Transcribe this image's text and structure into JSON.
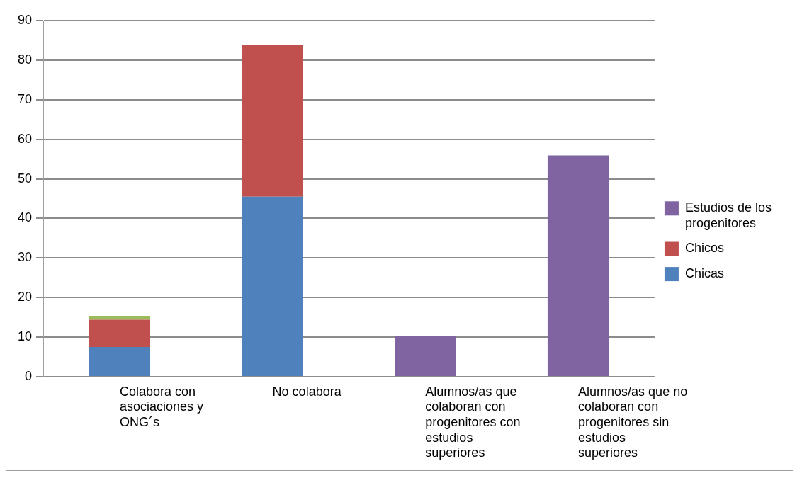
{
  "chart_data": {
    "type": "bar",
    "stacked": true,
    "categories": [
      "Colabora con asociaciones y ONG´s",
      "No colabora",
      "Alumnos/as que colaboran con progenitores con estudios superiores",
      "Alumnos/as que no colaboran con progenitores sin estudios superiores"
    ],
    "series": [
      {
        "name": "Chicas",
        "color": "#4f81bd",
        "values": [
          7.5,
          45.5,
          null,
          null
        ]
      },
      {
        "name": "Chicos",
        "color": "#c0504d",
        "values": [
          6.9,
          38.3,
          null,
          null
        ]
      },
      {
        "color": "#9bbb59",
        "values": [
          1.0,
          null,
          null,
          null
        ]
      },
      {
        "name": "Estudios de los progenitores",
        "color": "#8064a2",
        "values": [
          null,
          null,
          10.3,
          55.9
        ]
      }
    ],
    "ylim": [
      0,
      90
    ],
    "yticks": [
      0,
      10,
      20,
      30,
      40,
      50,
      60,
      70,
      80,
      90
    ],
    "grid": "y",
    "legend": "right"
  }
}
